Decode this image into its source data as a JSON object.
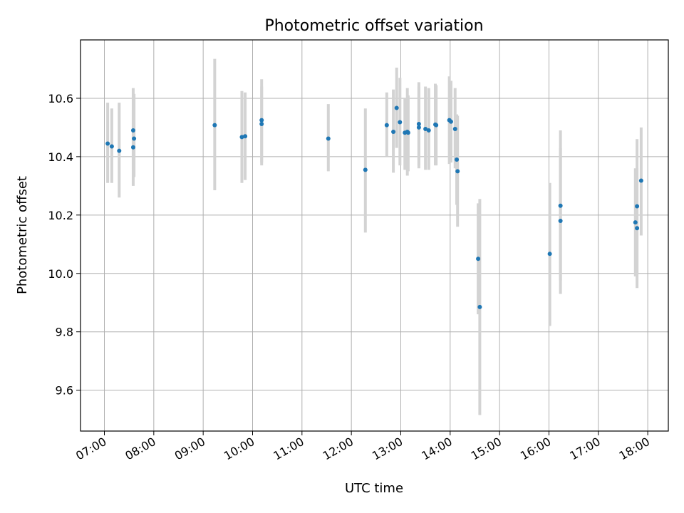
{
  "chart_data": {
    "type": "scatter",
    "title": "Photometric offset variation",
    "xlabel": "UTC time",
    "ylabel": "Photometric offset",
    "xlim": [
      "06:31",
      "18:25"
    ],
    "ylim": [
      9.46,
      10.8
    ],
    "x_tick_labels": [
      "07:00",
      "08:00",
      "09:00",
      "10:00",
      "11:00",
      "12:00",
      "13:00",
      "14:00",
      "15:00",
      "16:00",
      "17:00",
      "18:00"
    ],
    "y_tick_labels": [
      "9.6",
      "9.8",
      "10.0",
      "10.2",
      "10.4",
      "10.6"
    ],
    "y_ticks": [
      9.6,
      9.8,
      10.0,
      10.2,
      10.4,
      10.6
    ],
    "grid": true,
    "marker_color": "#1f77b4",
    "errorbar_color": "#d3d3d3",
    "series": [
      {
        "points": [
          {
            "t": "07:04",
            "y": 10.445,
            "lo": 10.31,
            "hi": 10.585
          },
          {
            "t": "07:09",
            "y": 10.435,
            "lo": 10.31,
            "hi": 10.565
          },
          {
            "t": "07:18",
            "y": 10.42,
            "lo": 10.26,
            "hi": 10.585
          },
          {
            "t": "07:35",
            "y": 10.49,
            "lo": 10.36,
            "hi": 10.635
          },
          {
            "t": "07:36",
            "y": 10.462,
            "lo": 10.33,
            "hi": 10.615
          },
          {
            "t": "07:35",
            "y": 10.432,
            "lo": 10.3,
            "hi": 10.56
          },
          {
            "t": "09:14",
            "y": 10.508,
            "lo": 10.285,
            "hi": 10.735
          },
          {
            "t": "09:47",
            "y": 10.467,
            "lo": 10.31,
            "hi": 10.625
          },
          {
            "t": "09:51",
            "y": 10.47,
            "lo": 10.32,
            "hi": 10.62
          },
          {
            "t": "10:11",
            "y": 10.525,
            "lo": 10.38,
            "hi": 10.665
          },
          {
            "t": "10:11",
            "y": 10.512,
            "lo": 10.37,
            "hi": 10.64
          },
          {
            "t": "11:32",
            "y": 10.462,
            "lo": 10.35,
            "hi": 10.58
          },
          {
            "t": "12:17",
            "y": 10.355,
            "lo": 10.14,
            "hi": 10.565
          },
          {
            "t": "12:43",
            "y": 10.508,
            "lo": 10.4,
            "hi": 10.62
          },
          {
            "t": "12:51",
            "y": 10.485,
            "lo": 10.345,
            "hi": 10.63
          },
          {
            "t": "12:55",
            "y": 10.567,
            "lo": 10.43,
            "hi": 10.705
          },
          {
            "t": "12:59",
            "y": 10.518,
            "lo": 10.37,
            "hi": 10.67
          },
          {
            "t": "13:05",
            "y": 10.482,
            "lo": 10.355,
            "hi": 10.6
          },
          {
            "t": "13:08",
            "y": 10.485,
            "lo": 10.335,
            "hi": 10.635
          },
          {
            "t": "13:09",
            "y": 10.482,
            "lo": 10.35,
            "hi": 10.61
          },
          {
            "t": "13:22",
            "y": 10.512,
            "lo": 10.37,
            "hi": 10.655
          },
          {
            "t": "13:22",
            "y": 10.5,
            "lo": 10.36,
            "hi": 10.64
          },
          {
            "t": "13:30",
            "y": 10.495,
            "lo": 10.355,
            "hi": 10.64
          },
          {
            "t": "13:34",
            "y": 10.49,
            "lo": 10.355,
            "hi": 10.635
          },
          {
            "t": "13:42",
            "y": 10.51,
            "lo": 10.37,
            "hi": 10.65
          },
          {
            "t": "13:43",
            "y": 10.508,
            "lo": 10.37,
            "hi": 10.645
          },
          {
            "t": "13:59",
            "y": 10.525,
            "lo": 10.375,
            "hi": 10.675
          },
          {
            "t": "14:01",
            "y": 10.52,
            "lo": 10.38,
            "hi": 10.66
          },
          {
            "t": "14:06",
            "y": 10.495,
            "lo": 10.36,
            "hi": 10.635
          },
          {
            "t": "14:08",
            "y": 10.39,
            "lo": 10.235,
            "hi": 10.545
          },
          {
            "t": "14:09",
            "y": 10.35,
            "lo": 10.16,
            "hi": 10.54
          },
          {
            "t": "14:34",
            "y": 10.05,
            "lo": 9.86,
            "hi": 10.24
          },
          {
            "t": "14:36",
            "y": 9.885,
            "lo": 9.515,
            "hi": 10.255
          },
          {
            "t": "16:01",
            "y": 10.067,
            "lo": 9.82,
            "hi": 10.31
          },
          {
            "t": "16:14",
            "y": 10.232,
            "lo": 9.975,
            "hi": 10.49
          },
          {
            "t": "16:14",
            "y": 10.18,
            "lo": 9.93,
            "hi": 10.43
          },
          {
            "t": "17:45",
            "y": 10.175,
            "lo": 9.99,
            "hi": 10.36
          },
          {
            "t": "17:47",
            "y": 10.23,
            "lo": 10.0,
            "hi": 10.46
          },
          {
            "t": "17:47",
            "y": 10.155,
            "lo": 9.95,
            "hi": 10.36
          },
          {
            "t": "17:52",
            "y": 10.318,
            "lo": 10.13,
            "hi": 10.5
          }
        ]
      }
    ]
  }
}
